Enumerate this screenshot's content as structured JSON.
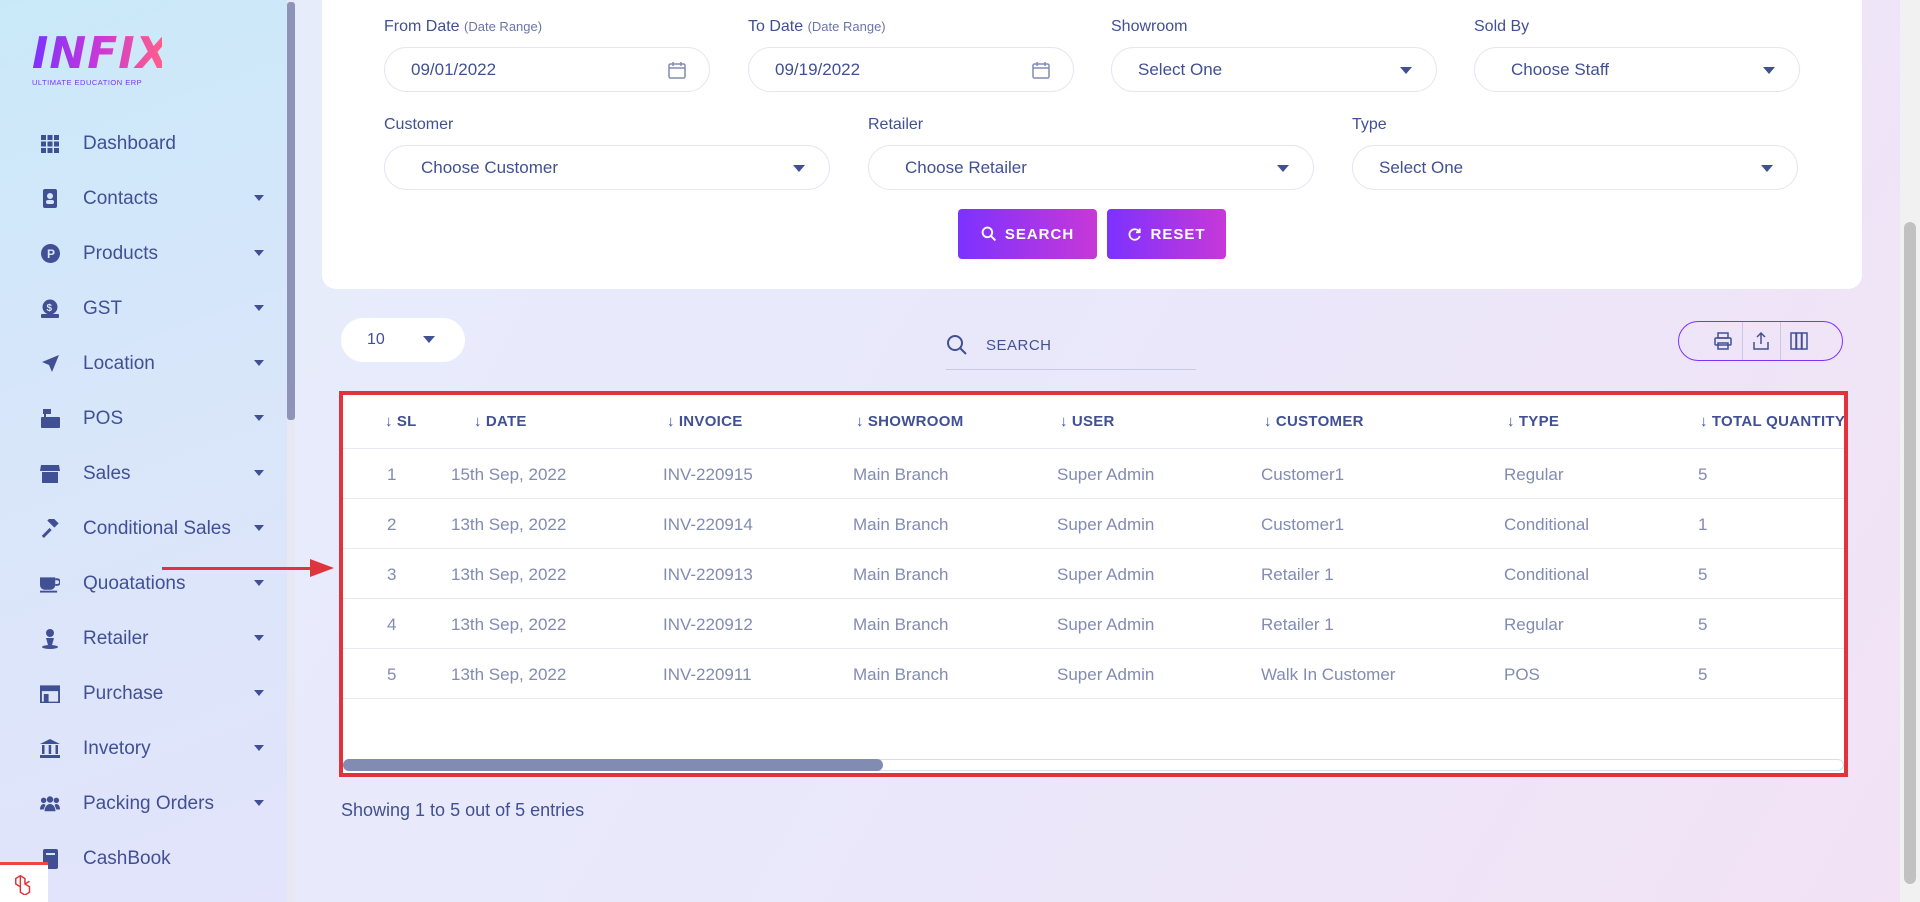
{
  "brand": {
    "name": "INFIX",
    "tagline": "ULTIMATE EDUCATION ERP"
  },
  "sidebar": {
    "items": [
      {
        "label": "Dashboard",
        "icon": "grid-icon",
        "has_caret": false
      },
      {
        "label": "Contacts",
        "icon": "contact-book-icon",
        "has_caret": true
      },
      {
        "label": "Products",
        "icon": "product-p-icon",
        "has_caret": true
      },
      {
        "label": "GST",
        "icon": "dollar-badge-icon",
        "has_caret": true
      },
      {
        "label": "Location",
        "icon": "location-arrow-icon",
        "has_caret": true
      },
      {
        "label": "POS",
        "icon": "cash-register-icon",
        "has_caret": true
      },
      {
        "label": "Sales",
        "icon": "store-icon",
        "has_caret": true
      },
      {
        "label": "Conditional Sales",
        "icon": "gavel-icon",
        "has_caret": true
      },
      {
        "label": "Quoatations",
        "icon": "coffee-cup-icon",
        "has_caret": true
      },
      {
        "label": "Retailer",
        "icon": "person-icon",
        "has_caret": true
      },
      {
        "label": "Purchase",
        "icon": "shop-icon",
        "has_caret": true
      },
      {
        "label": "Invetory",
        "icon": "bank-icon",
        "has_caret": true
      },
      {
        "label": "Packing Orders",
        "icon": "users-icon",
        "has_caret": true
      },
      {
        "label": "CashBook",
        "icon": "book-icon",
        "has_caret": false
      }
    ]
  },
  "filters": {
    "from_date": {
      "label": "From Date",
      "hint": "(Date Range)",
      "value": "09/01/2022"
    },
    "to_date": {
      "label": "To Date",
      "hint": "(Date Range)",
      "value": "09/19/2022"
    },
    "showroom": {
      "label": "Showroom",
      "value": "Select One"
    },
    "sold_by": {
      "label": "Sold By",
      "value": "Choose Staff"
    },
    "customer": {
      "label": "Customer",
      "value": "Choose Customer"
    },
    "retailer": {
      "label": "Retailer",
      "value": "Choose Retailer"
    },
    "type": {
      "label": "Type",
      "value": "Select One"
    },
    "search_label": "SEARCH",
    "reset_label": "RESET"
  },
  "table_controls": {
    "page_size": "10",
    "search_placeholder": "SEARCH"
  },
  "table": {
    "columns": [
      "SL",
      "DATE",
      "INVOICE",
      "SHOWROOM",
      "USER",
      "CUSTOMER",
      "TYPE",
      "TOTAL QUANTITY"
    ],
    "rows": [
      [
        "1",
        "15th Sep, 2022",
        "INV-220915",
        "Main Branch",
        "Super Admin",
        "Customer1",
        "Regular",
        "5"
      ],
      [
        "2",
        "13th Sep, 2022",
        "INV-220914",
        "Main Branch",
        "Super Admin",
        "Customer1",
        "Conditional",
        "1"
      ],
      [
        "3",
        "13th Sep, 2022",
        "INV-220913",
        "Main Branch",
        "Super Admin",
        "Retailer 1",
        "Conditional",
        "5"
      ],
      [
        "4",
        "13th Sep, 2022",
        "INV-220912",
        "Main Branch",
        "Super Admin",
        "Retailer 1",
        "Regular",
        "5"
      ],
      [
        "5",
        "13th Sep, 2022",
        "INV-220911",
        "Main Branch",
        "Super Admin",
        "Walk In Customer",
        "POS",
        "5"
      ]
    ],
    "horizontal_scroll_fraction": 0.36
  },
  "footer": {
    "entries_text": "Showing 1 to 5 out of 5 entries"
  },
  "colors": {
    "accent": "#7c32ff",
    "accent2": "#c738d8",
    "text": "#415094",
    "muted": "#828bb2",
    "annotation": "#e0333c"
  }
}
